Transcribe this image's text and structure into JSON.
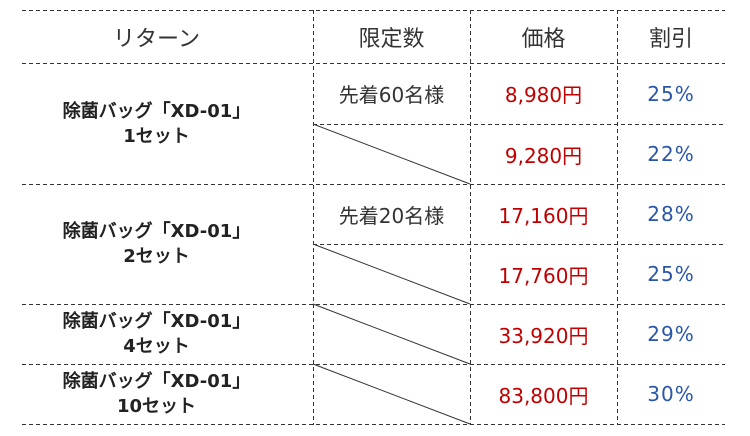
{
  "header": {
    "return": "リターン",
    "limit": "限定数",
    "price": "価格",
    "discount": "割引"
  },
  "groups": [
    {
      "name": "除菌バッグ「XD-01」",
      "qty": "1セット",
      "limit": "先着60名様",
      "rows": [
        {
          "price": "8,980円",
          "discount": "25%"
        },
        {
          "price": "9,280円",
          "discount": "22%"
        }
      ]
    },
    {
      "name": "除菌バッグ「XD-01」",
      "qty": "2セット",
      "limit": "先着20名様",
      "rows": [
        {
          "price": "17,160円",
          "discount": "28%"
        },
        {
          "price": "17,760円",
          "discount": "25%"
        }
      ]
    },
    {
      "name": "除菌バッグ「XD-01」",
      "qty": "4セット",
      "rows": [
        {
          "price": "33,920円",
          "discount": "29%"
        }
      ]
    },
    {
      "name": "除菌バッグ「XD-01」",
      "qty": "10セット",
      "rows": [
        {
          "price": "83,800円",
          "discount": "30%"
        }
      ]
    }
  ],
  "colors": {
    "price": "#c00000",
    "discount": "#2a56a8",
    "lines": "#333333"
  }
}
